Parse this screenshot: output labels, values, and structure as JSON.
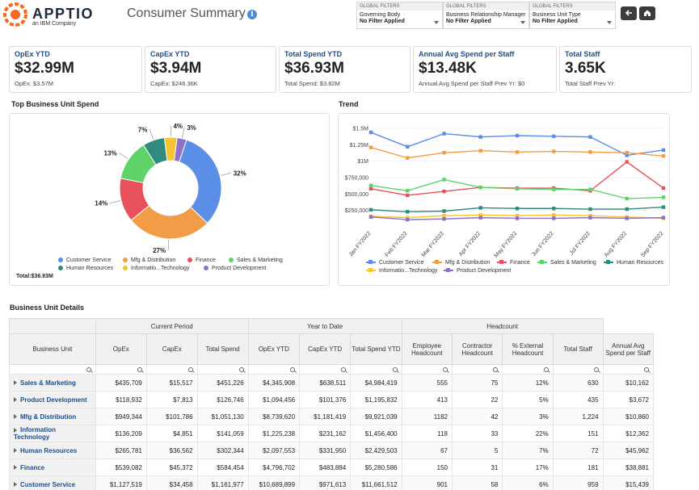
{
  "header": {
    "brand": "APPTIO",
    "brand_sub": "an IBM Company",
    "title": "Consumer Summary",
    "info_icon": "info-icon"
  },
  "filters": [
    {
      "head": "GLOBAL FILTERS",
      "label": "Governing Body",
      "value": "No Filter Applied"
    },
    {
      "head": "GLOBAL FILTERS",
      "label": "Business Relationship Manager",
      "value": "No Filter Applied"
    },
    {
      "head": "GLOBAL FILTERS",
      "label": "Business Unit Type",
      "value": "No Filter Applied"
    }
  ],
  "nav": {
    "back_icon": "back-arrow-icon",
    "home_icon": "home-icon"
  },
  "kpis": [
    {
      "title": "OpEx YTD",
      "value": "$32.99M",
      "sub": "OpEx: $3.57M"
    },
    {
      "title": "CapEx YTD",
      "value": "$3.94M",
      "sub": "CapEx: $246.36K"
    },
    {
      "title": "Total Spend YTD",
      "value": "$36.93M",
      "sub": "Total Spend: $3.82M"
    },
    {
      "title": "Annual Avg Spend per Staff",
      "value": "$13.48K",
      "sub": "Annual Avg Spend per Staff Prev Yr: $0"
    },
    {
      "title": "Total Staff",
      "value": "3.65K",
      "sub": "Total Staff Prev Yr:"
    }
  ],
  "colors": {
    "Customer Service": "#5b8ee6",
    "Mfg & Distribution": "#f39c48",
    "Finance": "#e8505b",
    "Sales & Marketing": "#5fd36a",
    "Human Resources": "#2e8b7e",
    "Information Technology": "#f6c430",
    "Product Development": "#8e6fc9"
  },
  "donut": {
    "title": "Top Business Unit Spend",
    "total": "Total:$36.93M",
    "legend": [
      "Customer Service",
      "Mfg & Distribution",
      "Finance",
      "Sales & Marketing",
      "Human Resources",
      "Informatio...Technology",
      "Product Development"
    ]
  },
  "trend": {
    "title": "Trend",
    "legend": [
      "Customer Service",
      "Mfg & Distribution",
      "Finance",
      "Sales & Marketing",
      "Human Resources",
      "Informatio...Technology",
      "Product Development"
    ]
  },
  "chart_data": [
    {
      "type": "pie",
      "title": "Top Business Unit Spend",
      "categories": [
        "Customer Service",
        "Mfg & Distribution",
        "Finance",
        "Sales & Marketing",
        "Human Resources",
        "Information Technology",
        "Product Development"
      ],
      "values": [
        32,
        27,
        14,
        13,
        7,
        4,
        3
      ],
      "labels": [
        "32%",
        "27%",
        "14%",
        "13%",
        "7%",
        "4%",
        "3%"
      ],
      "total_label": "Total:$36.93M"
    },
    {
      "type": "line",
      "title": "Trend",
      "categories": [
        "Jan FY2022",
        "Feb FY2022",
        "Mar FY2022",
        "Apr FY2022",
        "May FY2022",
        "Jun FY2022",
        "Jul FY2022",
        "Aug FY2022",
        "Sep FY2022"
      ],
      "yticks": [
        "$250,000",
        "$500,000",
        "$750,000",
        "$1M",
        "$1.25M",
        "$1.5M"
      ],
      "ylim": [
        0,
        1550000
      ],
      "series": [
        {
          "name": "Customer Service",
          "values": [
            1440000,
            1220000,
            1420000,
            1370000,
            1390000,
            1380000,
            1370000,
            1090000,
            1170000
          ]
        },
        {
          "name": "Mfg & Distribution",
          "values": [
            1210000,
            1050000,
            1130000,
            1160000,
            1140000,
            1150000,
            1140000,
            1130000,
            1080000
          ]
        },
        {
          "name": "Finance",
          "values": [
            580000,
            480000,
            540000,
            600000,
            590000,
            590000,
            550000,
            990000,
            590000
          ]
        },
        {
          "name": "Sales & Marketing",
          "values": [
            630000,
            550000,
            720000,
            600000,
            580000,
            570000,
            570000,
            430000,
            450000
          ]
        },
        {
          "name": "Human Resources",
          "values": [
            260000,
            230000,
            240000,
            290000,
            280000,
            280000,
            270000,
            270000,
            300000
          ]
        },
        {
          "name": "Information Technology",
          "values": [
            160000,
            140000,
            170000,
            180000,
            170000,
            180000,
            170000,
            150000,
            130000
          ]
        },
        {
          "name": "Product Development",
          "values": [
            150000,
            110000,
            120000,
            140000,
            130000,
            130000,
            140000,
            130000,
            140000
          ]
        }
      ]
    }
  ],
  "details": {
    "title": "Business Unit Details",
    "groups": [
      "Current Period",
      "Year to Date",
      "Headcount"
    ],
    "columns": [
      "Business Unit",
      "OpEx",
      "CapEx",
      "Total Spend",
      "OpEx YTD",
      "CapEx YTD",
      "Total Spend YTD",
      "Employee Headcount",
      "Contractor Headcount",
      "% External Headcount",
      "Total Staff",
      "Annual Avg Spend per Staff"
    ],
    "rows": [
      [
        "Sales & Marketing",
        "$435,709",
        "$15,517",
        "$451,226",
        "$4,345,908",
        "$638,511",
        "$4,984,419",
        "555",
        "75",
        "12%",
        "630",
        "$10,162"
      ],
      [
        "Product Development",
        "$118,932",
        "$7,813",
        "$126,746",
        "$1,094,456",
        "$101,376",
        "$1,195,832",
        "413",
        "22",
        "5%",
        "435",
        "$3,672"
      ],
      [
        "Mfg & Distribution",
        "$949,344",
        "$101,786",
        "$1,051,130",
        "$8,739,620",
        "$1,181,419",
        "$9,921,039",
        "1182",
        "42",
        "3%",
        "1,224",
        "$10,860"
      ],
      [
        "Information Technology",
        "$136,209",
        "$4,851",
        "$141,059",
        "$1,225,238",
        "$231,162",
        "$1,456,400",
        "118",
        "33",
        "22%",
        "151",
        "$12,362"
      ],
      [
        "Human Resources",
        "$265,781",
        "$36,562",
        "$302,344",
        "$2,097,553",
        "$331,950",
        "$2,429,503",
        "67",
        "5",
        "7%",
        "72",
        "$45,962"
      ],
      [
        "Finance",
        "$539,082",
        "$45,372",
        "$584,454",
        "$4,796,702",
        "$483,884",
        "$5,280,586",
        "150",
        "31",
        "17%",
        "181",
        "$38,881"
      ],
      [
        "Customer Service",
        "$1,127,519",
        "$34,458",
        "$1,161,977",
        "$10,689,899",
        "$971,613",
        "$11,661,512",
        "901",
        "58",
        "6%",
        "959",
        "$15,439"
      ]
    ]
  }
}
